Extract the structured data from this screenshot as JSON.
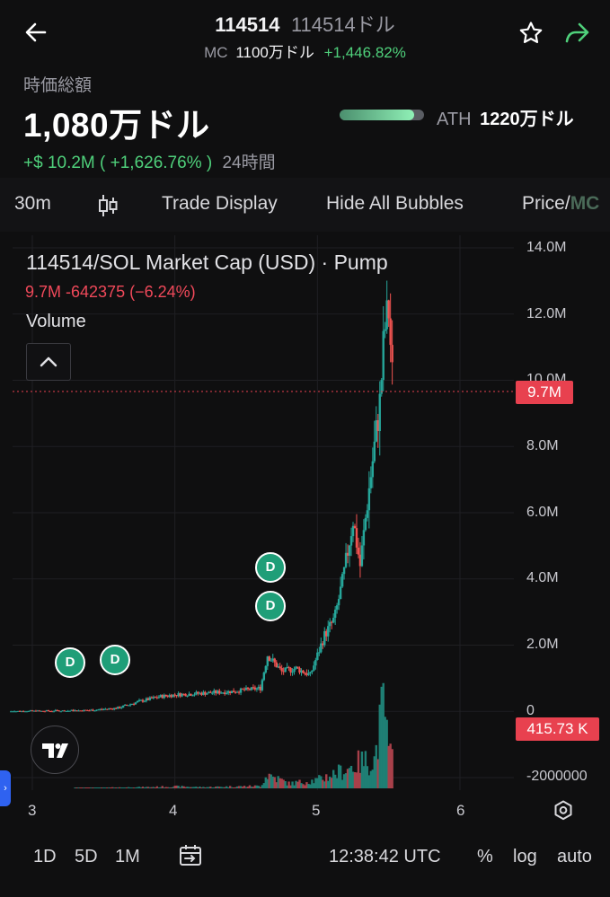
{
  "header": {
    "symbol": "114514",
    "name": "114514ドル",
    "mc_label": "MC",
    "mc_value": "1100万ドル",
    "mc_change": "+1,446.82%"
  },
  "market_cap": {
    "label": "時価総額",
    "value": "1,080万ドル",
    "change": "+$ 10.2M ( +1,626.76% )",
    "period": "24時間",
    "ath_label": "ATH",
    "ath_value": "1220万ドル",
    "ath_progress": 0.885
  },
  "toolbar": {
    "interval": "30m",
    "trade_display": "Trade Display",
    "hide_bubbles": "Hide All Bubbles",
    "price_mc": "Price/",
    "price_mc_active": "MC"
  },
  "chart": {
    "title": "114514/SOL Market Cap (USD) · Pump",
    "ohlc": "9.7M  -642375 (−6.24%)",
    "volume_label": "Volume",
    "price_tag": "9.7M",
    "volume_tag": "415.73 K",
    "bubble_label": "D",
    "y_labels": [
      "14.0M",
      "12.0M",
      "10.0M",
      "8.0M",
      "6.0M",
      "4.0M",
      "2.0M",
      "0",
      "-2000000"
    ],
    "x_labels": [
      "3",
      "4",
      "5",
      "6"
    ]
  },
  "chart_data": {
    "type": "candlestick",
    "ylim": [
      -2000000,
      14000000
    ],
    "xlim": [
      2.85,
      6.4
    ],
    "last_value": 9700000,
    "y_ticks": [
      -2000000,
      0,
      2000000,
      4000000,
      6000000,
      8000000,
      10000000,
      12000000,
      14000000
    ],
    "x_ticks": [
      3,
      4,
      5,
      6
    ],
    "price_path": [
      [
        2.85,
        0.0
      ],
      [
        3.0,
        0.0
      ],
      [
        3.2,
        0.01
      ],
      [
        3.4,
        0.03
      ],
      [
        3.6,
        0.1
      ],
      [
        3.75,
        0.3
      ],
      [
        3.9,
        0.45
      ],
      [
        4.0,
        0.5
      ],
      [
        4.2,
        0.55
      ],
      [
        4.4,
        0.6
      ],
      [
        4.6,
        0.7
      ],
      [
        4.65,
        1.7
      ],
      [
        4.75,
        1.2
      ],
      [
        4.85,
        1.3
      ],
      [
        4.95,
        1.1
      ],
      [
        5.05,
        2.3
      ],
      [
        5.12,
        2.8
      ],
      [
        5.18,
        4.0
      ],
      [
        5.25,
        5.8
      ],
      [
        5.3,
        4.4
      ],
      [
        5.35,
        6.3
      ],
      [
        5.4,
        8.0
      ],
      [
        5.44,
        9.4
      ],
      [
        5.47,
        11.5
      ],
      [
        5.5,
        12.1
      ],
      [
        5.53,
        9.7
      ]
    ],
    "volume_path": [
      [
        3.4,
        0.02
      ],
      [
        3.8,
        0.05
      ],
      [
        4.0,
        0.08
      ],
      [
        4.2,
        0.05
      ],
      [
        4.6,
        0.1
      ],
      [
        4.65,
        0.6
      ],
      [
        4.8,
        0.2
      ],
      [
        5.0,
        0.35
      ],
      [
        5.2,
        0.8
      ],
      [
        5.3,
        1.1
      ],
      [
        5.4,
        1.2
      ],
      [
        5.47,
        3.7
      ],
      [
        5.5,
        1.3
      ]
    ],
    "bubbles": [
      {
        "x": 3.25,
        "y": 1.5
      },
      {
        "x": 3.55,
        "y": 1.6
      },
      {
        "x": 4.67,
        "y": 4.3
      },
      {
        "x": 4.67,
        "y": 3.2
      }
    ]
  },
  "bottom": {
    "tf_1d": "1D",
    "tf_5d": "5D",
    "tf_1m": "1M",
    "time": "12:38:42 UTC",
    "pct": "%",
    "log": "log",
    "auto": "auto"
  },
  "colors": {
    "up": "#26a69a",
    "down": "#ef5350",
    "accent_green": "#4fd07b",
    "accent_red": "#e8414f",
    "bubble": "#1f9e78"
  }
}
